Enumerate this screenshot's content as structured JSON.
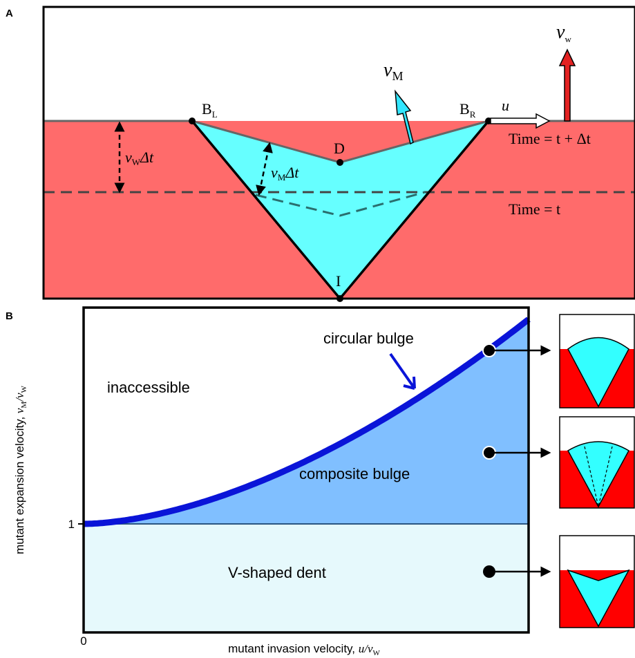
{
  "panel_a": {
    "label": "A",
    "v_w": {
      "symbol": "v",
      "sub": "w"
    },
    "v_m": {
      "symbol": "v",
      "sub": "M"
    },
    "u": "u",
    "b_l": {
      "symbol": "B",
      "sub": "L"
    },
    "b_r": {
      "symbol": "B",
      "sub": "R"
    },
    "d": "D",
    "i": "I",
    "vw_dt": {
      "symbol": "v",
      "sub": "W",
      "rest": "Δt"
    },
    "vm_dt": {
      "symbol": "v",
      "sub": "M",
      "rest": "Δt"
    },
    "time_next": "Time = t + Δt",
    "time_now": "Time = t"
  },
  "panel_b": {
    "label": "B",
    "regions": [
      "circular bulge",
      "inaccessible",
      "composite bulge",
      "V-shaped dent"
    ],
    "y_tick": "1",
    "x_tick": "0",
    "y_label": {
      "text": "mutant expansion velocity,  ",
      "math": "v",
      "sub": "M",
      "slash": "/v",
      "sub2": "W"
    },
    "x_label": {
      "text": "mutant invasion velocity, ",
      "math": "u/v",
      "sub": "W"
    }
  }
}
